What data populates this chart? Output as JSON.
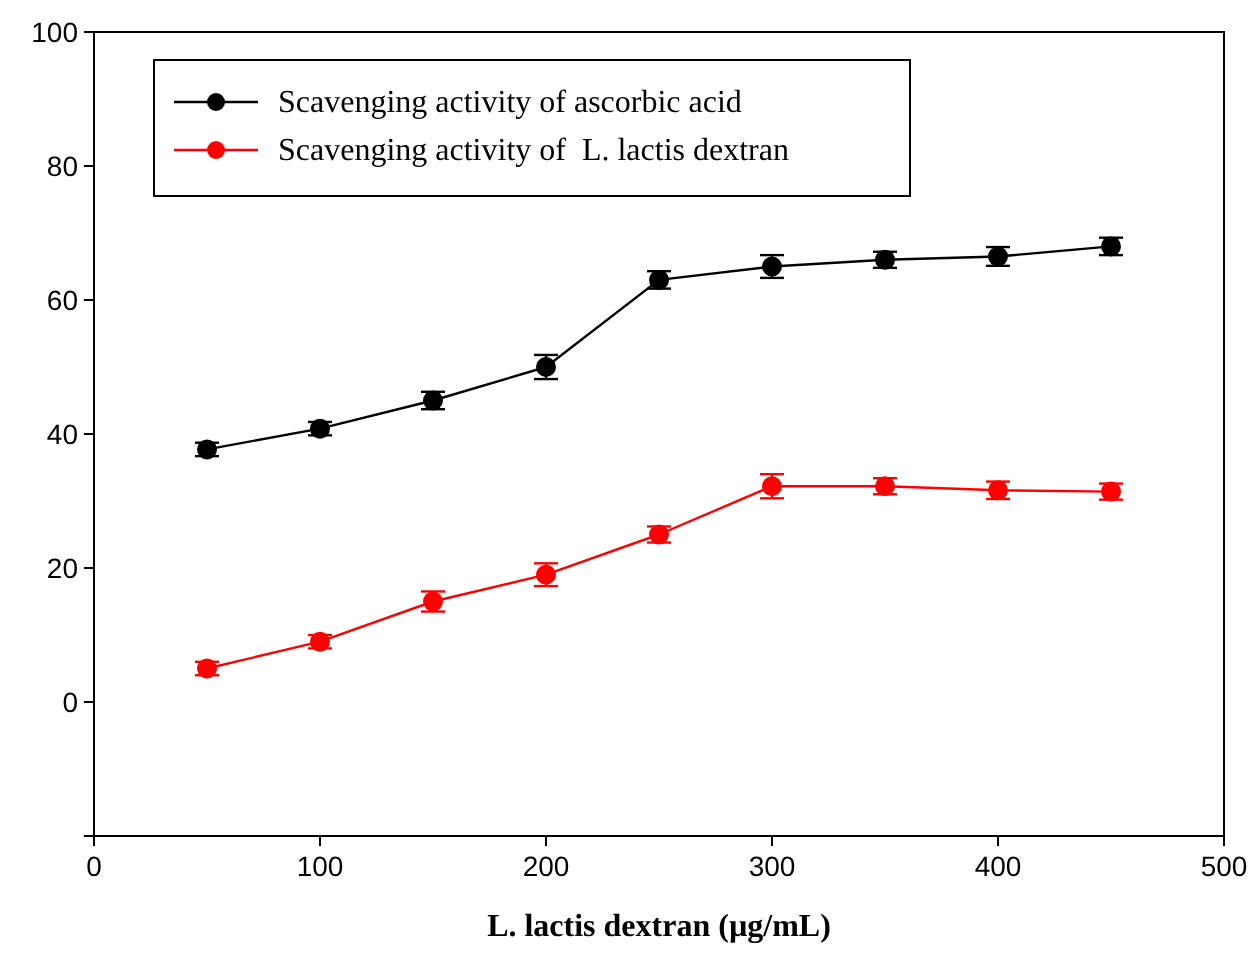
{
  "chart_data": {
    "type": "line",
    "xlabel": "L. lactis dextran (µg/mL)",
    "x": [
      50,
      100,
      150,
      200,
      250,
      300,
      350,
      400,
      450
    ],
    "series": [
      {
        "name": "Scavenging activity of ascorbic acid",
        "color": "#000000",
        "values": [
          37.7,
          40.8,
          45,
          50,
          63,
          65,
          66,
          66.5,
          68
        ],
        "errors": [
          1,
          1,
          1.3,
          1.8,
          1.3,
          1.7,
          1.2,
          1.4,
          1.3
        ]
      },
      {
        "name": "Scavenging activity of  L. lactis dextran",
        "color": "#ff0000",
        "values": [
          5,
          9,
          15,
          19,
          25,
          32.2,
          32.2,
          31.6,
          31.4
        ],
        "errors": [
          1,
          1,
          1.5,
          1.7,
          1.2,
          1.8,
          1.2,
          1.3,
          1.2
        ]
      }
    ],
    "xlim": [
      0,
      500
    ],
    "xticks": [
      0,
      100,
      200,
      300,
      400,
      500
    ],
    "ylim": [
      -20,
      100
    ],
    "yticks": [
      {
        "value": -20,
        "label": null
      },
      0,
      20,
      40,
      60,
      80,
      100
    ],
    "grid": false,
    "legend": "top left",
    "marker": "circle",
    "line_style": "solid"
  }
}
